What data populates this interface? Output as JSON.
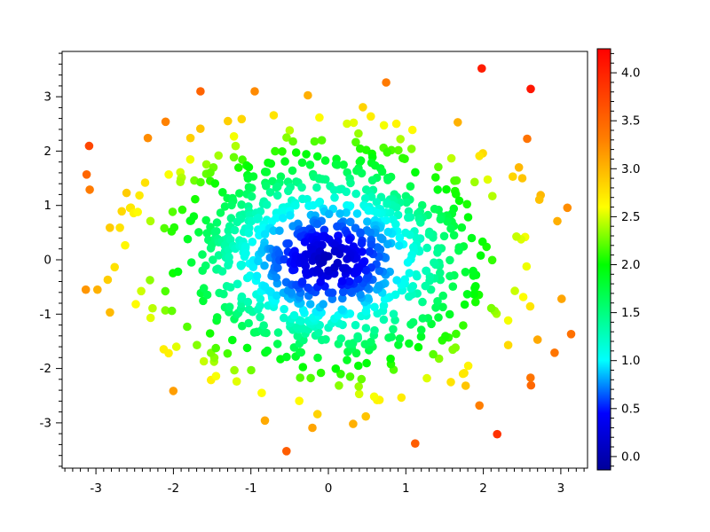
{
  "figure": {
    "background": "#ffffff",
    "title": ""
  },
  "chart_data": {
    "type": "scatter",
    "title": "",
    "xlabel": "",
    "ylabel": "",
    "grid": false,
    "legend": "none (colorbar on right)",
    "x_axis": {
      "range": [
        -3.436,
        3.345
      ],
      "tick_values": [
        -3,
        -2,
        -1,
        0,
        1,
        2,
        3
      ],
      "tick_labels": [
        "-3",
        "-2",
        "-1",
        "0",
        "1",
        "2",
        "3"
      ],
      "minor_step": 0.1
    },
    "y_axis": {
      "range": [
        -3.834,
        3.834
      ],
      "tick_values": [
        -3,
        -2,
        -1,
        0,
        1,
        2,
        3
      ],
      "tick_labels": [
        "-3",
        "-2",
        "-1",
        "0",
        "1",
        "2",
        "3"
      ],
      "minor_step": 0.2
    },
    "colorbar": {
      "range": [
        -0.14,
        4.25
      ],
      "tick_values": [
        0.0,
        0.5,
        1.0,
        1.5,
        2.0,
        2.5,
        3.0,
        3.5,
        4.0
      ],
      "tick_labels": [
        "0.0",
        "0.5",
        "1.0",
        "1.5",
        "2.0",
        "2.5",
        "3.0",
        "3.5",
        "4.0"
      ],
      "minor_step": 0.1,
      "colormap_name": "jet",
      "colormap": [
        {
          "value": -0.14,
          "color": "#000099"
        },
        {
          "value": 0.45,
          "color": "#0000FF"
        },
        {
          "value": 1.0,
          "color": "#00FFFF"
        },
        {
          "value": 2.0,
          "color": "#00FF00"
        },
        {
          "value": 2.6,
          "color": "#FFFF00"
        },
        {
          "value": 3.3,
          "color": "#FF8000"
        },
        {
          "value": 4.25,
          "color": "#FF0000"
        }
      ]
    },
    "points": {
      "count": 1000,
      "distribution": "bivariate-gaussian",
      "center": [
        0,
        0
      ],
      "sigma": 1.08,
      "seed": 1337,
      "clip": [
        3.3,
        3.72
      ],
      "color_by": "radius sqrt(x^2+y^2)",
      "marker_diameter_px": 9.6
    },
    "outliers": [
      [
        1.98,
        3.52
      ],
      [
        -1.65,
        3.1
      ],
      [
        -0.95,
        3.1
      ],
      [
        -2.1,
        2.54
      ],
      [
        -2.33,
        2.24
      ],
      [
        -1.78,
        2.24
      ],
      [
        1.67,
        2.53
      ],
      [
        0.93,
        2.22
      ],
      [
        -3.12,
        1.57
      ],
      [
        -3.08,
        1.29
      ],
      [
        -2.82,
        0.59
      ],
      [
        -2.69,
        0.59
      ],
      [
        -2.55,
        0.96
      ],
      [
        -2.46,
        0.88
      ],
      [
        -2.06,
        1.57
      ],
      [
        -3.13,
        -0.55
      ],
      [
        -2.98,
        -0.55
      ],
      [
        1.95,
        1.91
      ],
      [
        2.46,
        1.7
      ],
      [
        2.38,
        1.53
      ],
      [
        2.74,
        1.19
      ],
      [
        2.54,
        0.42
      ],
      [
        3.01,
        -0.72
      ],
      [
        2.7,
        -1.47
      ],
      [
        2.92,
        -1.71
      ],
      [
        2.61,
        -2.17
      ],
      [
        1.95,
        -2.68
      ],
      [
        1.12,
        -3.38
      ],
      [
        -0.54,
        -3.52
      ],
      [
        0.32,
        -3.02
      ],
      [
        0.66,
        -2.58
      ],
      [
        -0.86,
        -2.45
      ],
      [
        -0.14,
        -2.84
      ],
      [
        -1.45,
        -2.14
      ]
    ]
  }
}
